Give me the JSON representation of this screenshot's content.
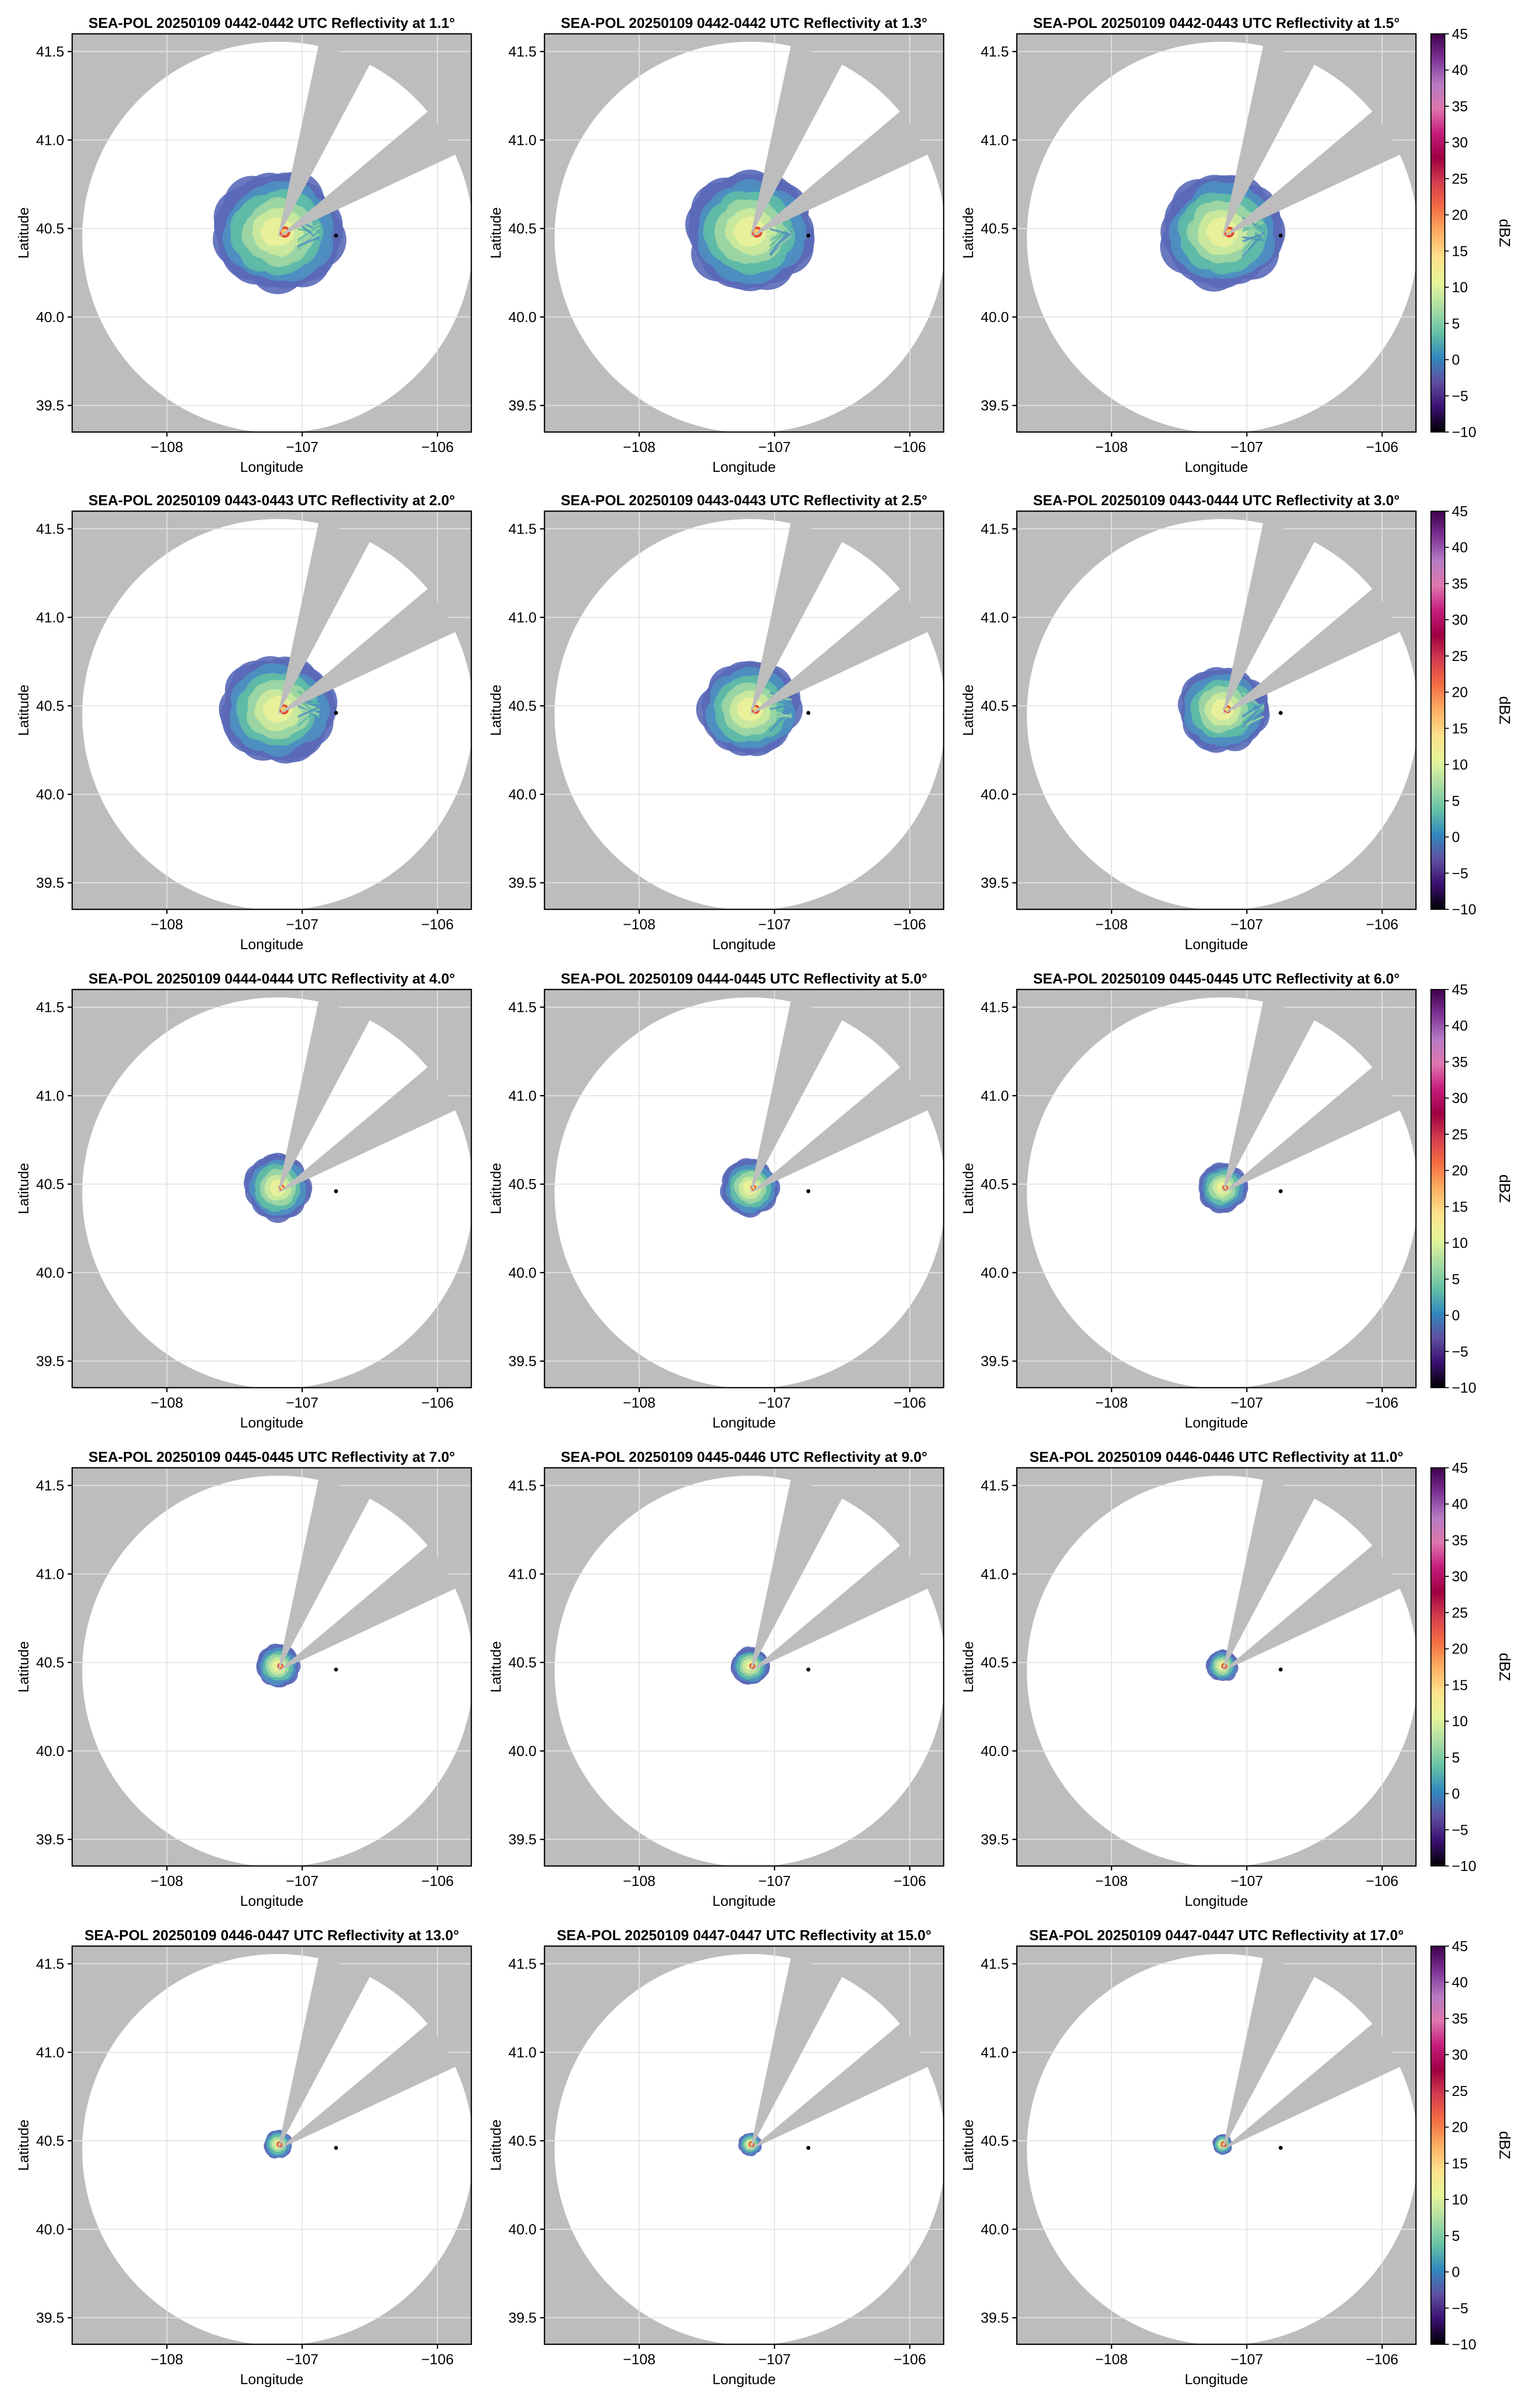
{
  "figure": {
    "axis_x_label": "Longitude",
    "axis_y_label": "Latitude",
    "x_ticks": [
      "−108",
      "−107",
      "−106"
    ],
    "y_ticks": [
      "41.5",
      "41.0",
      "40.5",
      "40.0",
      "39.5"
    ],
    "colorbar": {
      "label": "dBZ",
      "ticks": [
        "45",
        "40",
        "35",
        "30",
        "25",
        "20",
        "15",
        "10",
        "5",
        "0",
        "−5",
        "−10"
      ],
      "range": [
        -10,
        45
      ],
      "colormap": [
        "#000004",
        "#3b0f70",
        "#5e4fa2",
        "#3288bd",
        "#66c2a5",
        "#abdda4",
        "#e6f598",
        "#fee08b",
        "#fdae61",
        "#f46d43",
        "#d53e4f",
        "#9e0142",
        "#c51b7d",
        "#de77ae",
        "#b57ac2",
        "#7b3294",
        "#40004b"
      ]
    },
    "colors": {
      "masked": "#bdbdbd",
      "coverage": "#ffffff",
      "grid": "#e3e3e3",
      "echo_core": "#e44a33",
      "echo_edge": "#5a69b8"
    }
  },
  "chart_data": {
    "type": "heatmap",
    "description": "SEA-POL radar reflectivity PPI panels in a 5x3 grid",
    "xlim": [
      -108.7,
      -105.75
    ],
    "ylim": [
      39.35,
      41.6
    ],
    "radar_location": {
      "lon": -106.75,
      "lat": 40.46
    },
    "echo_center": {
      "lon": -107.18,
      "lat": 40.48
    },
    "panels": [
      {
        "title": "SEA-POL 20250109 0442-0442 UTC Reflectivity at 1.1°",
        "elevation": 1.1,
        "echo_radius_deg": 0.42,
        "max_dbz": 28
      },
      {
        "title": "SEA-POL 20250109 0442-0442 UTC Reflectivity at 1.3°",
        "elevation": 1.3,
        "echo_radius_deg": 0.41,
        "max_dbz": 28
      },
      {
        "title": "SEA-POL 20250109 0442-0443 UTC Reflectivity at 1.5°",
        "elevation": 1.5,
        "echo_radius_deg": 0.4,
        "max_dbz": 30
      },
      {
        "title": "SEA-POL 20250109 0443-0443 UTC Reflectivity at 2.0°",
        "elevation": 2.0,
        "echo_radius_deg": 0.37,
        "max_dbz": 30
      },
      {
        "title": "SEA-POL 20250109 0443-0443 UTC Reflectivity at 2.5°",
        "elevation": 2.5,
        "echo_radius_deg": 0.33,
        "max_dbz": 30
      },
      {
        "title": "SEA-POL 20250109 0443-0444 UTC Reflectivity at 3.0°",
        "elevation": 3.0,
        "echo_radius_deg": 0.29,
        "max_dbz": 30
      },
      {
        "title": "SEA-POL 20250109 0444-0444 UTC Reflectivity at 4.0°",
        "elevation": 4.0,
        "echo_radius_deg": 0.23,
        "max_dbz": 27
      },
      {
        "title": "SEA-POL 20250109 0444-0445 UTC Reflectivity at 5.0°",
        "elevation": 5.0,
        "echo_radius_deg": 0.2,
        "max_dbz": 24
      },
      {
        "title": "SEA-POL 20250109 0445-0445 UTC Reflectivity at 6.0°",
        "elevation": 6.0,
        "echo_radius_deg": 0.17,
        "max_dbz": 22
      },
      {
        "title": "SEA-POL 20250109 0445-0445 UTC Reflectivity at 7.0°",
        "elevation": 7.0,
        "echo_radius_deg": 0.15,
        "max_dbz": 20
      },
      {
        "title": "SEA-POL 20250109 0445-0446 UTC Reflectivity at 9.0°",
        "elevation": 9.0,
        "echo_radius_deg": 0.13,
        "max_dbz": 19
      },
      {
        "title": "SEA-POL 20250109 0446-0446 UTC Reflectivity at 11.0°",
        "elevation": 11.0,
        "echo_radius_deg": 0.11,
        "max_dbz": 18
      },
      {
        "title": "SEA-POL 20250109 0446-0447 UTC Reflectivity at 13.0°",
        "elevation": 13.0,
        "echo_radius_deg": 0.1,
        "max_dbz": 17
      },
      {
        "title": "SEA-POL 20250109 0447-0447 UTC Reflectivity at 15.0°",
        "elevation": 15.0,
        "echo_radius_deg": 0.08,
        "max_dbz": 16
      },
      {
        "title": "SEA-POL 20250109 0447-0447 UTC Reflectivity at 17.0°",
        "elevation": 17.0,
        "echo_radius_deg": 0.07,
        "max_dbz": 15
      }
    ]
  }
}
